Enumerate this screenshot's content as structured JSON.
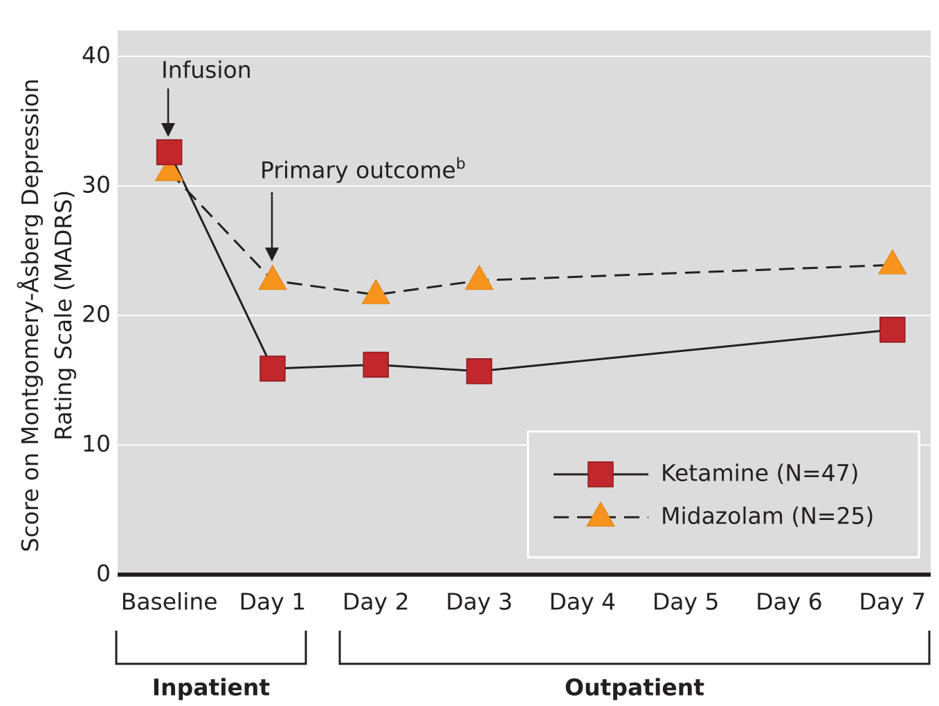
{
  "chart_data": {
    "type": "line",
    "ylabel": [
      "Score on Montgomery-Åsberg Depression",
      "Rating Scale (MADRS)"
    ],
    "xticks": [
      {
        "value": 0,
        "label": "Baseline"
      },
      {
        "value": 1,
        "label": "Day 1"
      },
      {
        "value": 2,
        "label": "Day 2"
      },
      {
        "value": 3,
        "label": "Day 3"
      },
      {
        "value": 4,
        "label": "Day 4"
      },
      {
        "value": 5,
        "label": "Day 5"
      },
      {
        "value": 6,
        "label": "Day 6"
      },
      {
        "value": 7,
        "label": "Day 7"
      }
    ],
    "x": [
      0,
      1,
      2,
      3,
      7
    ],
    "xlim": [
      -0.5,
      7.37
    ],
    "ylim": [
      0,
      42
    ],
    "yticks": [
      0,
      10,
      20,
      30,
      40
    ],
    "grid": true,
    "legend": "lower right",
    "series": [
      {
        "name": "Ketamine (N=47)",
        "color": "#c1272d",
        "marker": "square",
        "line_style": "solid",
        "values": [
          32.6,
          15.9,
          16.2,
          15.7,
          18.9
        ]
      },
      {
        "name": "Midazolam (N=25)",
        "color": "#f7941d",
        "marker": "triangle",
        "line_style": "dashed",
        "values": [
          31.1,
          22.7,
          21.6,
          22.7,
          23.9
        ]
      }
    ],
    "annotations": [
      {
        "text": "Infusion"
      },
      {
        "text": "Primary outcome",
        "superscript": "b"
      }
    ],
    "groups": [
      {
        "label": "Inpatient"
      },
      {
        "label": "Outpatient"
      }
    ]
  }
}
